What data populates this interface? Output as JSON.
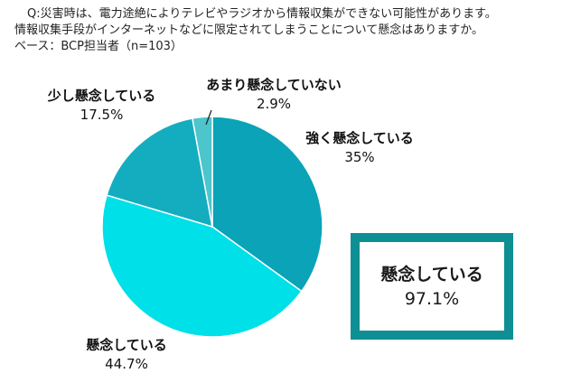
{
  "question": {
    "line1": "Q:災害時は、電力途絶によりテレビやラジオから情報収集ができない可能性があります。",
    "line2": "情報収集手段がインターネットなどに限定されてしまうことについて懸念はありますか。",
    "base": "ベース：BCP担当者（n=103）"
  },
  "chart_data": {
    "type": "pie",
    "title": "",
    "start": "12 o'clock, clockwise",
    "slices": [
      {
        "label": "強く懸念している",
        "value": 35,
        "display": "35%",
        "color": "#0aa3b8"
      },
      {
        "label": "懸念している",
        "value": 44.7,
        "display": "44.7%",
        "color": "#00e0e8"
      },
      {
        "label": "少し懸念している",
        "value": 17.5,
        "display": "17.5%",
        "color": "#14adc0"
      },
      {
        "label": "あまり懸念していない",
        "value": 2.9,
        "display": "2.9%",
        "color": "#4cc5cc"
      }
    ]
  },
  "callout": {
    "label": "懸念している",
    "value": "97.1%",
    "border_color": "#0e8f94"
  }
}
